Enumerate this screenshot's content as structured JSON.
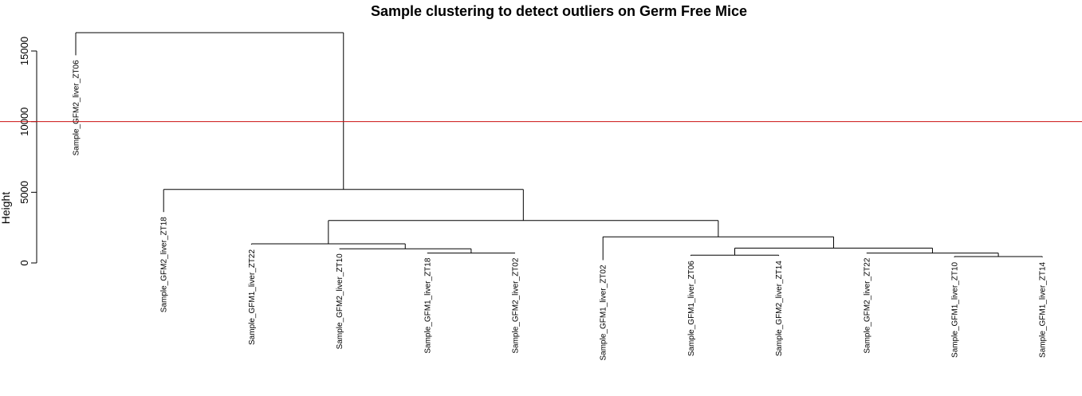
{
  "chart_data": {
    "type": "dendrogram",
    "title": "Sample clustering to detect outliers on Germ Free Mice",
    "xlabel": "",
    "ylabel": "Height",
    "ylim": [
      0,
      17000
    ],
    "yticks": [
      0,
      5000,
      10000,
      15000
    ],
    "ytick_labels": [
      "0",
      "5000",
      "10000",
      "15000"
    ],
    "cut_height": 10000,
    "cut_line_color": "#cc1111",
    "line_color": "#000000",
    "leaves": [
      "Sample_GFM2_liver_ZT06",
      "Sample_GFM2_liver_ZT18",
      "Sample_GFM1_liver_ZT22",
      "Sample_GFM2_liver_ZT10",
      "Sample_GFM1_liver_ZT18",
      "Sample_GFM2_liver_ZT02",
      "Sample_GFM1_liver_ZT02",
      "Sample_GFM1_liver_ZT06",
      "Sample_GFM2_liver_ZT14",
      "Sample_GFM2_liver_ZT22",
      "Sample_GFM1_liver_ZT10",
      "Sample_GFM1_liver_ZT14"
    ],
    "leaf_heights": [
      14700,
      3600,
      1300,
      1000,
      700,
      700,
      200,
      500,
      500,
      700,
      400,
      400
    ],
    "merges": [
      {
        "left": "L11",
        "right": "L12",
        "height": 450
      },
      {
        "left": "L8",
        "right": "L9",
        "height": 550
      },
      {
        "left": "L10",
        "right": "M1",
        "height": 700
      },
      {
        "left": "L5",
        "right": "L6",
        "height": 700
      },
      {
        "left": "L4",
        "right": "M4",
        "height": 1000
      },
      {
        "left": "M2",
        "right": "M3",
        "height": 1050
      },
      {
        "left": "L3",
        "right": "M5",
        "height": 1350
      },
      {
        "left": "L7",
        "right": "M6",
        "height": 1850
      },
      {
        "left": "M7",
        "right": "M8",
        "height": 3000
      },
      {
        "left": "L2",
        "right": "M9",
        "height": 5200
      },
      {
        "left": "L1",
        "right": "M10",
        "height": 16300
      }
    ]
  }
}
